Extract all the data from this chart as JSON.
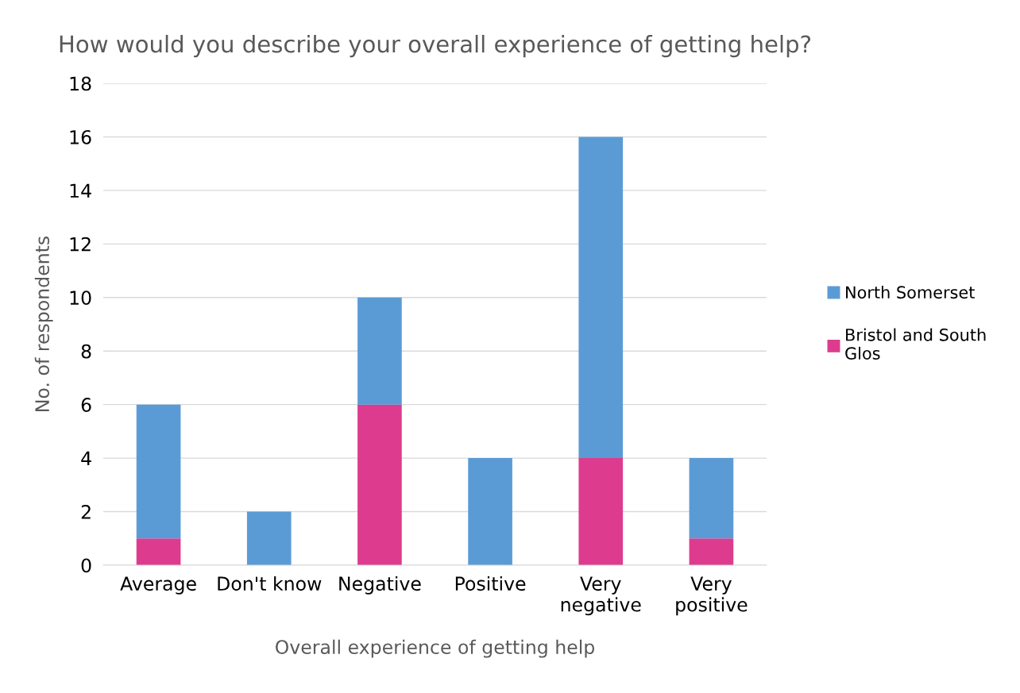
{
  "chart_data": {
    "type": "bar",
    "title": "How would you describe your overall experience of getting help?",
    "xlabel": "Overall experience of getting help",
    "ylabel": "No. of respondents",
    "categories": [
      "Average",
      "Don't know",
      "Negative",
      "Positive",
      "Very negative",
      "Very positive"
    ],
    "stacked": true,
    "series": [
      {
        "name": "Bristol and South Glos",
        "color": "#dd3c8e",
        "values": [
          1,
          0,
          6,
          0,
          4,
          1
        ]
      },
      {
        "name": "North Somerset",
        "color": "#5b9bd5",
        "values": [
          5,
          2,
          4,
          4,
          12,
          3
        ]
      }
    ],
    "ylim": [
      0,
      18
    ],
    "yticks": [
      0,
      2,
      4,
      6,
      8,
      10,
      12,
      14,
      16,
      18
    ],
    "grid": "y",
    "legend": "right"
  }
}
